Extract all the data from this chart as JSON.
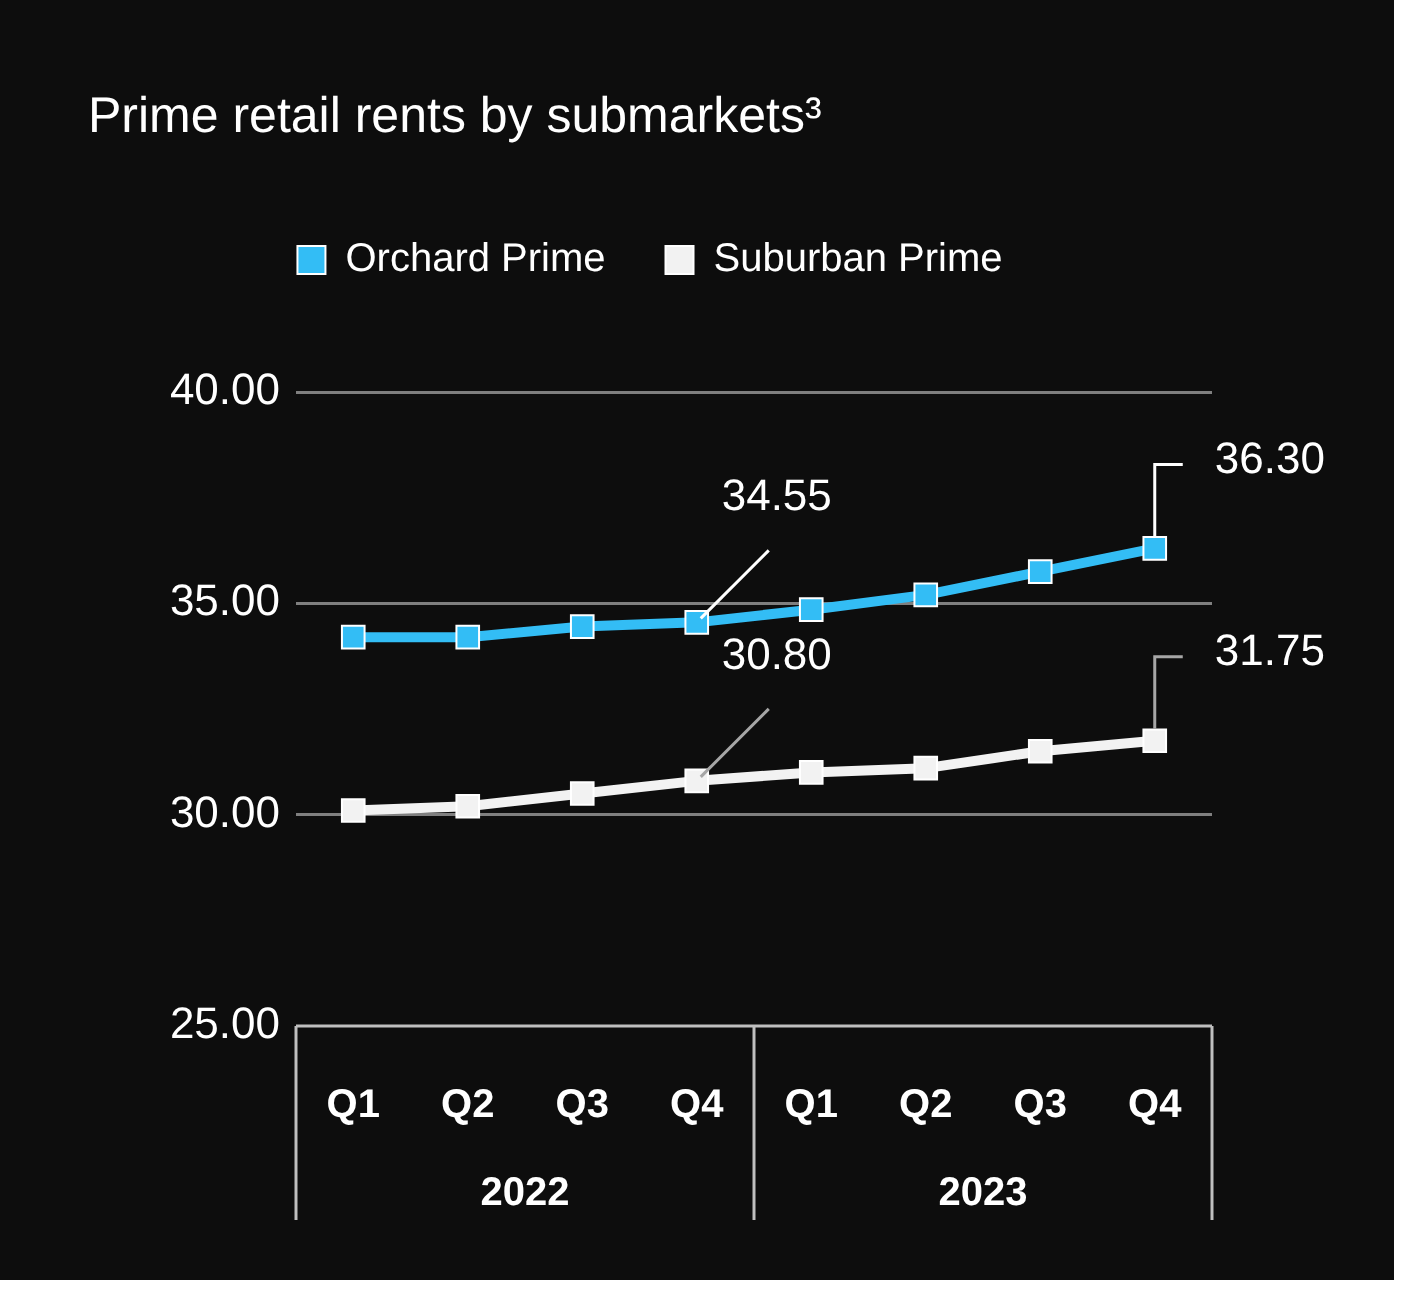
{
  "chart_data": {
    "type": "line",
    "title": "Prime retail rents by submarkets³",
    "categories": [
      "Q1",
      "Q2",
      "Q3",
      "Q4",
      "Q1",
      "Q2",
      "Q3",
      "Q4"
    ],
    "series": [
      {
        "name": "Orchard Prime",
        "color": "#33bdf5",
        "values": [
          34.2,
          34.2,
          34.45,
          34.55,
          34.85,
          35.2,
          35.75,
          36.3
        ],
        "value_labels": [
          null,
          null,
          null,
          "34.55",
          null,
          null,
          null,
          "36.30"
        ]
      },
      {
        "name": "Suburban Prime",
        "color": "#f2f2f2",
        "values": [
          30.1,
          30.2,
          30.5,
          30.8,
          31.0,
          31.1,
          31.5,
          31.75
        ],
        "value_labels": [
          null,
          null,
          null,
          "30.80",
          null,
          null,
          null,
          "31.75"
        ]
      }
    ],
    "annotations": [
      "2022",
      "2023"
    ],
    "ylim": [
      25,
      40
    ],
    "yticks": [
      {
        "value": 25,
        "label": "25.00"
      },
      {
        "value": 30,
        "label": "30.00"
      },
      {
        "value": 35,
        "label": "35.00"
      },
      {
        "value": 40,
        "label": "40.00"
      }
    ],
    "grid": "y",
    "legend": "top",
    "marker": "square",
    "line_style": "solid"
  }
}
